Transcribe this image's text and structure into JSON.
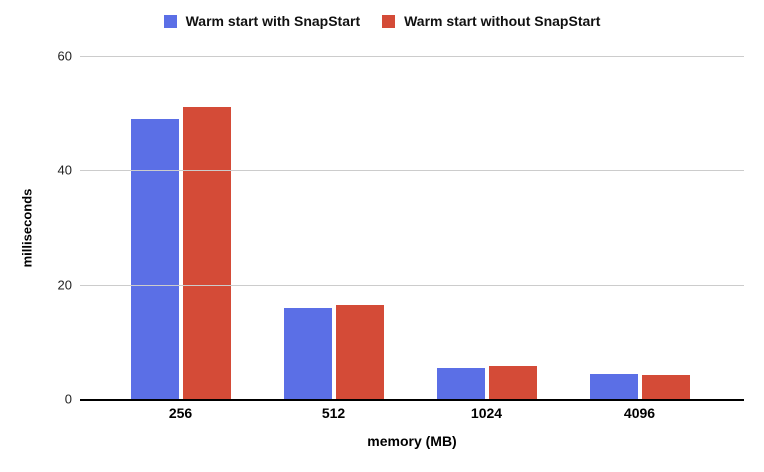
{
  "page": {
    "background": "#ffffff",
    "text_color": "#000000",
    "gridline_color": "#cccccc",
    "axis_line_color": "#000000"
  },
  "chart_data": {
    "type": "bar",
    "title": "",
    "categories": [
      "256",
      "512",
      "1024",
      "4096"
    ],
    "series": [
      {
        "name": "Warm start with SnapStart",
        "color": "#5b6fe6",
        "values": [
          49,
          16,
          5.4,
          4.4
        ]
      },
      {
        "name": "Warm start without SnapStart",
        "color": "#d44b37",
        "values": [
          51,
          16.5,
          5.7,
          4.2
        ]
      }
    ],
    "xlabel": "memory (MB)",
    "ylabel": "milliseconds",
    "ylim": [
      0,
      60
    ],
    "yticks": [
      0,
      20,
      40,
      60
    ],
    "grid": true,
    "legend_position": "top"
  }
}
